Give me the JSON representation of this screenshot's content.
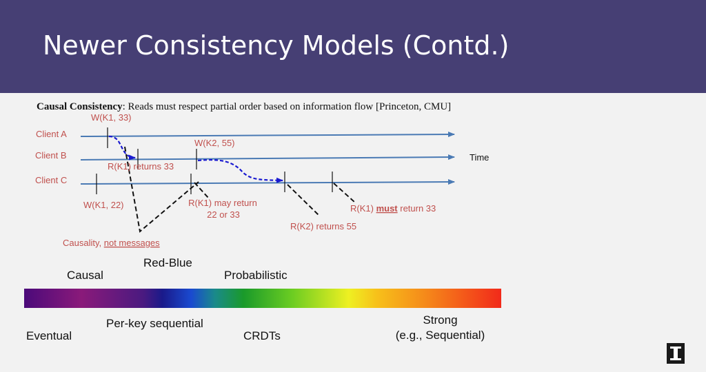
{
  "slide": {
    "title": "Newer Consistency Models (Contd.)",
    "description_bold": "Causal Consistency",
    "description_rest": ": Reads must respect partial order based on information flow [Princeton, CMU]"
  },
  "diagram": {
    "clients": [
      "Client A",
      "Client B",
      "Client C"
    ],
    "time_label": "Time",
    "events": {
      "w_k1_33": "W(K1, 33)",
      "w_k2_55": "W(K2, 55)",
      "r_k1_returns_33": "R(K1) returns 33",
      "w_k1_22": "W(K1, 22)",
      "r_k1_may_return_l1": "R(K1) may return",
      "r_k1_may_return_l2": "22 or 33",
      "r_k2_returns_55": "R(K2) returns 55",
      "r_k1_must_pre": "R(K1) ",
      "r_k1_must_bold": "must",
      "r_k1_must_post": " return 33"
    },
    "causality_pre": "Causality, ",
    "causality_link": "not messages",
    "colors": {
      "arrow": "#4a7ab4",
      "causal_flow": "#1a1ad0",
      "label": "#c0504d"
    }
  },
  "spectrum": {
    "top_labels": {
      "causal": "Causal",
      "red_blue": "Red-Blue",
      "probabilistic": "Probabilistic"
    },
    "bottom_labels": {
      "eventual": "Eventual",
      "per_key": "Per-key sequential",
      "crdts": "CRDTs",
      "strong_l1": "Strong",
      "strong_l2": "(e.g., Sequential)"
    }
  }
}
